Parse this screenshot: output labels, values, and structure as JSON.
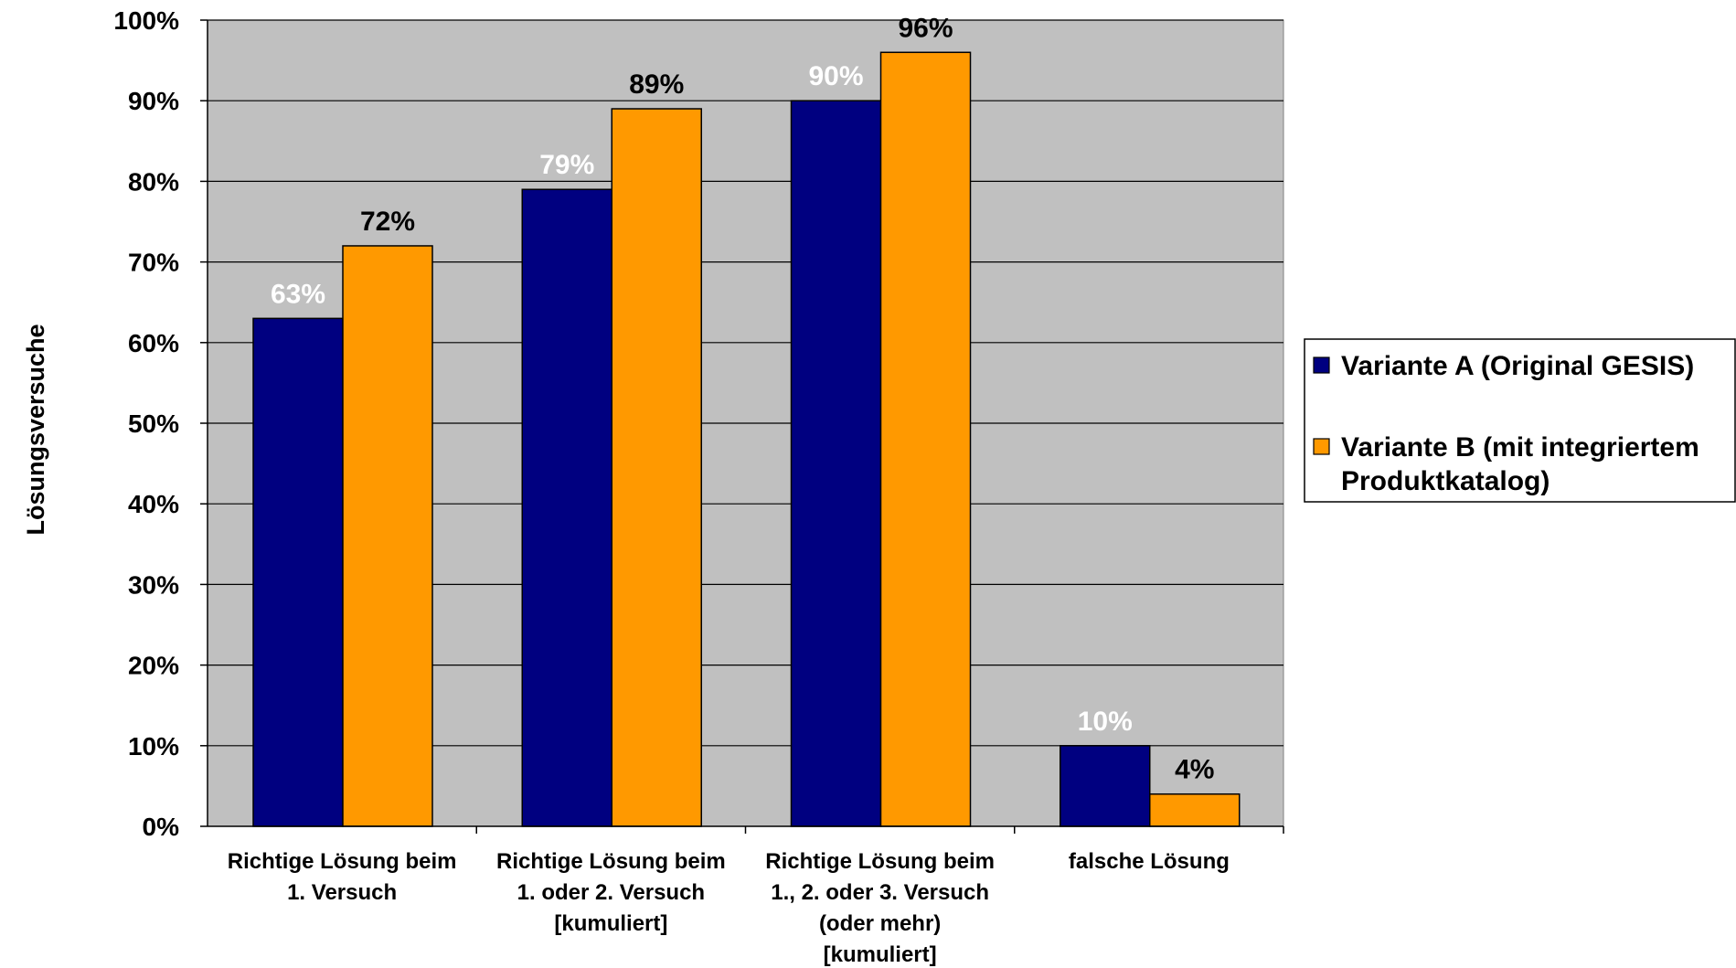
{
  "chart_data": {
    "type": "bar",
    "ylabel": "Lösungsversuche",
    "ylim": [
      0,
      100
    ],
    "yticks": [
      "0%",
      "10%",
      "20%",
      "30%",
      "40%",
      "50%",
      "60%",
      "70%",
      "80%",
      "90%",
      "100%"
    ],
    "grid": true,
    "legend_position": "right",
    "categories": [
      [
        "Richtige Lösung beim",
        "1. Versuch"
      ],
      [
        "Richtige Lösung beim",
        "1. oder 2. Versuch",
        "[kumuliert]"
      ],
      [
        "Richtige Lösung beim",
        "1., 2. oder 3. Versuch",
        "(oder mehr)",
        "[kumuliert]"
      ],
      [
        "falsche Lösung"
      ]
    ],
    "series": [
      {
        "legend": [
          "Variante A (Original GESIS)"
        ],
        "color": "#000080",
        "label_color": "#ffffff",
        "values": [
          63,
          79,
          90,
          10
        ],
        "labels": [
          "63%",
          "79%",
          "90%",
          "10%"
        ]
      },
      {
        "legend": [
          "Variante B (mit integriertem",
          "Produktkatalog)"
        ],
        "color": "#ff9900",
        "label_color": "#000000",
        "values": [
          72,
          89,
          96,
          4
        ],
        "labels": [
          "72%",
          "89%",
          "96%",
          "4%"
        ]
      }
    ],
    "plot_background": "#c0c0c0"
  }
}
